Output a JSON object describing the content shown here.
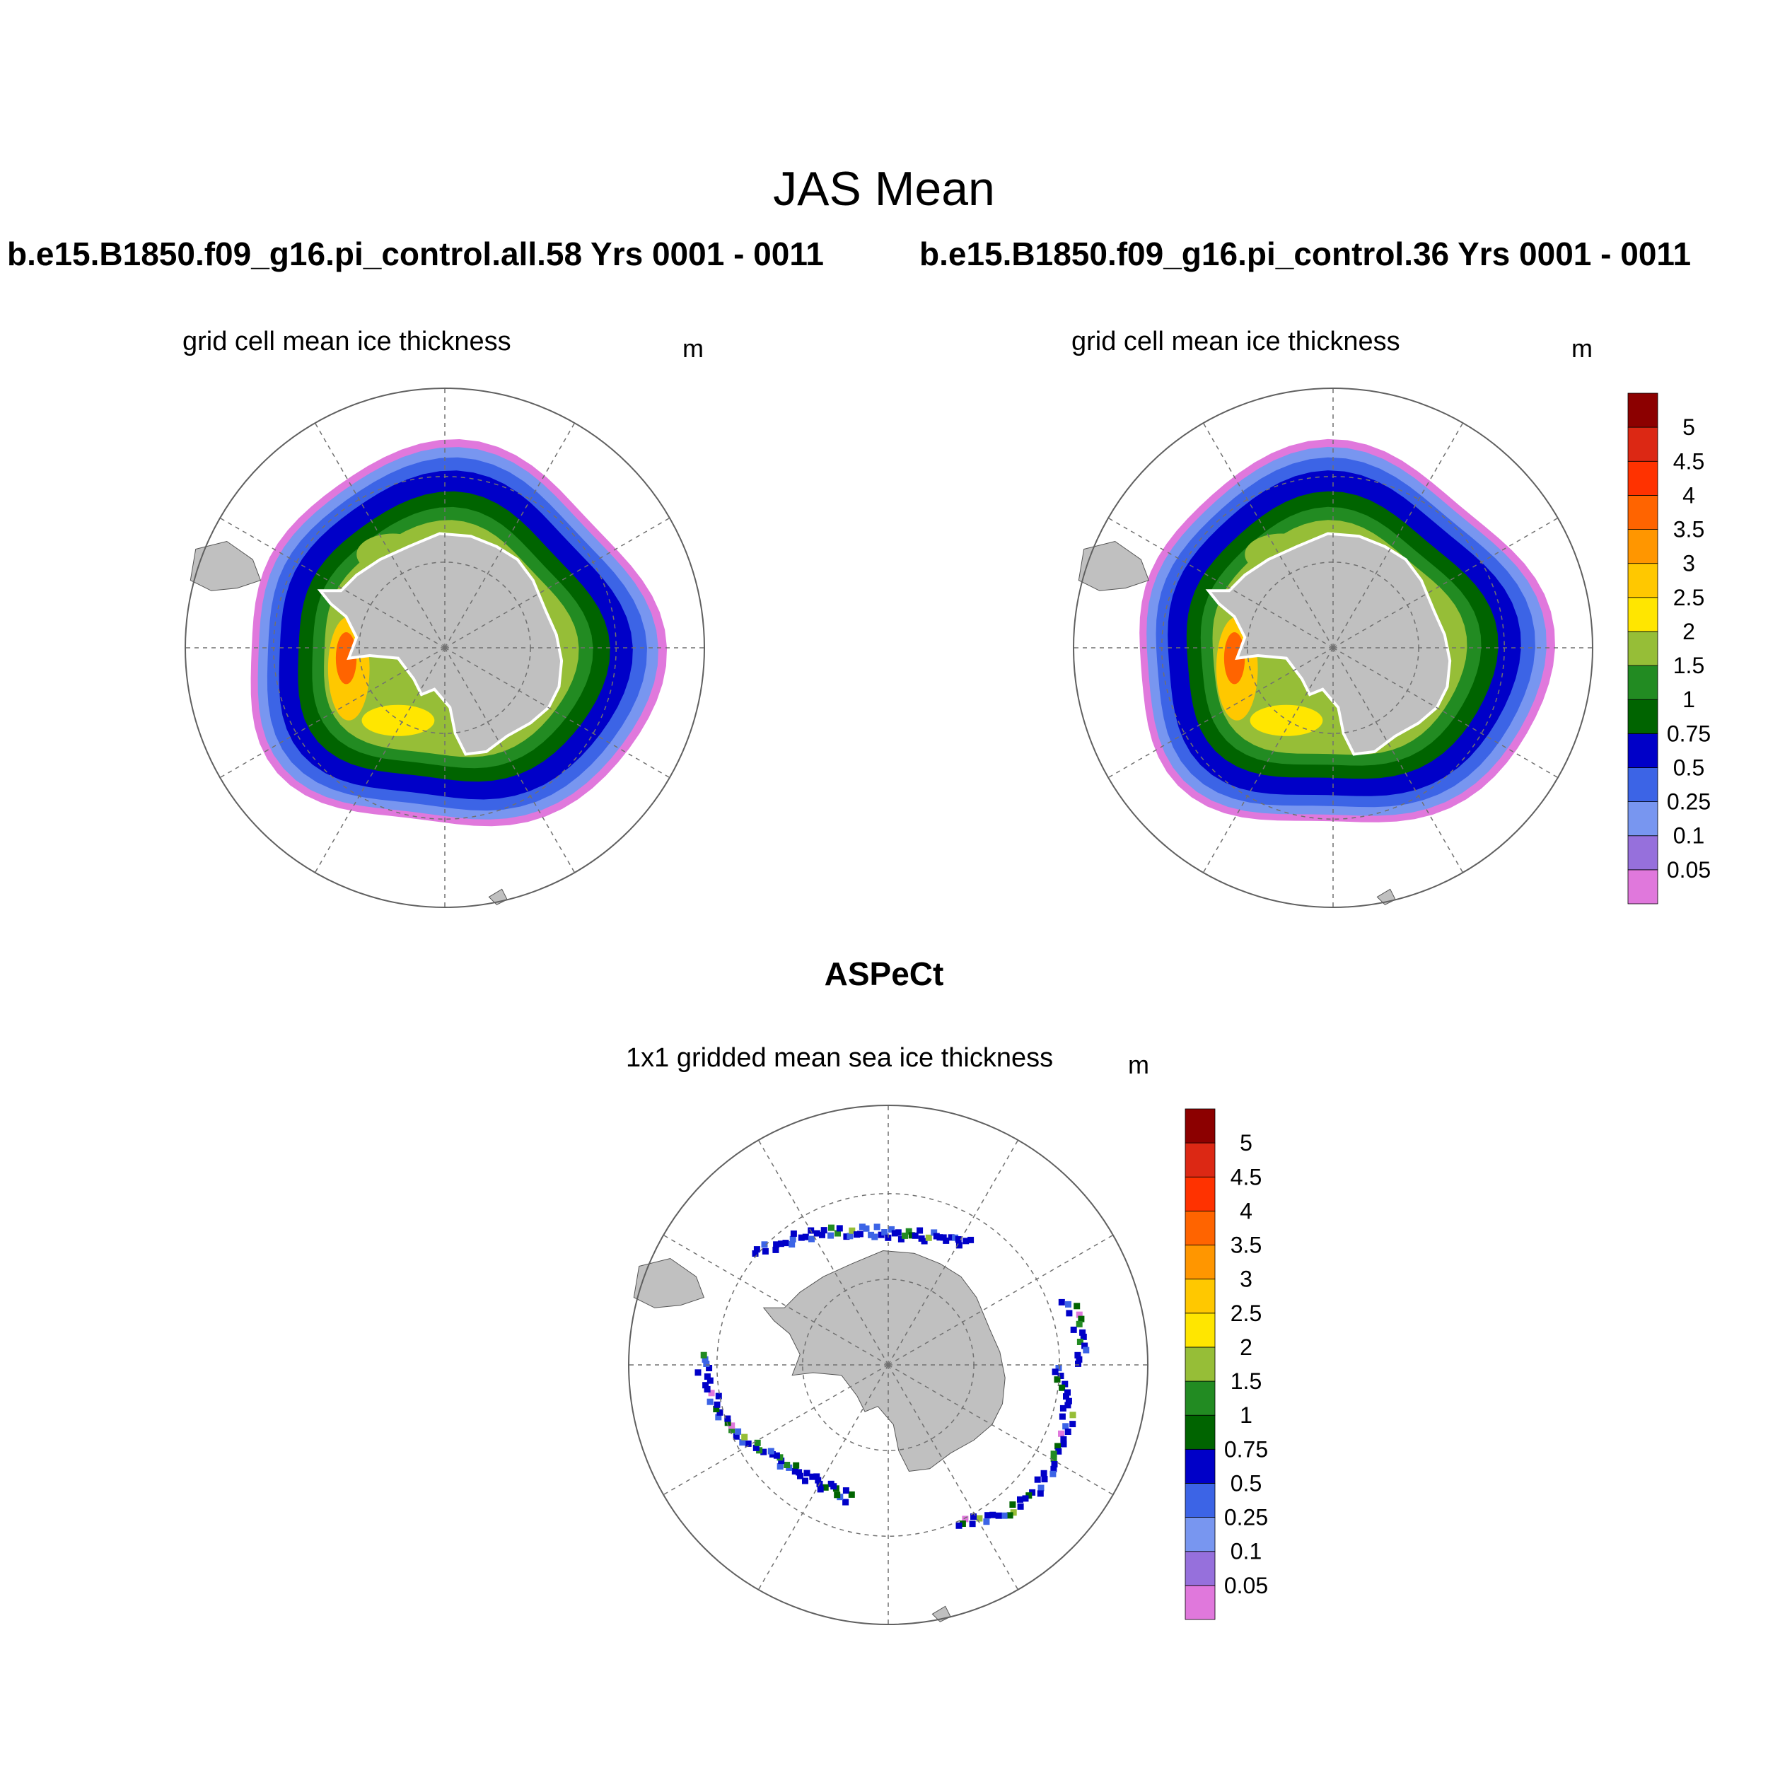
{
  "figure": {
    "title": "JAS Mean",
    "case_titles": [
      "b.e15.B1850.f09_g16.pi_control.all.58  Yrs 0001 - 0011",
      "b.e15.B1850.f09_g16.pi_control.36  Yrs 0001 - 0011"
    ],
    "observation_title": "ASPeCt"
  },
  "panels": [
    {
      "variable_label": "grid cell mean ice thickness",
      "units": "m"
    },
    {
      "variable_label": "grid cell mean ice thickness",
      "units": "m"
    },
    {
      "variable_label": "1x1 gridded mean sea ice thickness",
      "units": "m"
    }
  ],
  "colorbar": {
    "levels": [
      "0.05",
      "0.1",
      "0.25",
      "0.5",
      "0.75",
      "1",
      "1.5",
      "2",
      "2.5",
      "3",
      "3.5",
      "4",
      "4.5",
      "5"
    ],
    "colors": [
      "#e078dc",
      "#9670dc",
      "#7896f0",
      "#3c64e6",
      "#0000c8",
      "#006400",
      "#228b22",
      "#96be37",
      "#ffe600",
      "#ffc800",
      "#ff9600",
      "#ff6400",
      "#ff3200",
      "#dc2814",
      "#8c0000"
    ]
  },
  "map_style": {
    "projection": "south-polar-stereographic",
    "land_color": "#c0c0c0",
    "gridline_color": "#707070",
    "ocean_color": "#ffffff"
  }
}
